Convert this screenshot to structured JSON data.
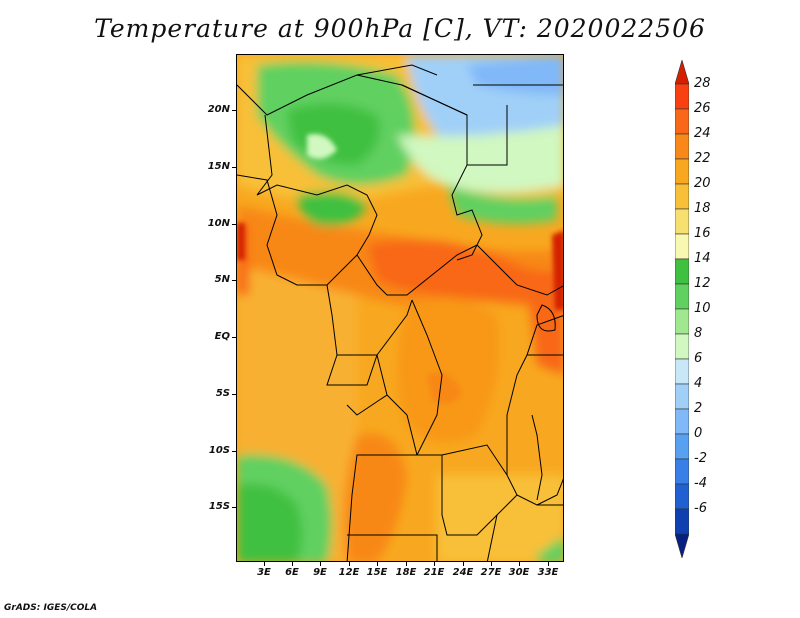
{
  "title": "Temperature at 900hPa [C], VT: 2020022506",
  "credit": "GrADS: IGES/COLA",
  "y_axis": {
    "labels": [
      "20N",
      "15N",
      "10N",
      "5N",
      "EQ",
      "5S",
      "10S",
      "15S"
    ]
  },
  "x_axis": {
    "labels": [
      "3E",
      "6E",
      "9E",
      "12E",
      "15E",
      "18E",
      "21E",
      "24E",
      "27E",
      "30E",
      "33E"
    ]
  },
  "colorbar": {
    "labels": [
      "28",
      "26",
      "24",
      "22",
      "20",
      "18",
      "16",
      "14",
      "12",
      "10",
      "8",
      "6",
      "4",
      "2",
      "0",
      "-2",
      "-4",
      "-6"
    ],
    "colors": [
      "#d42000",
      "#f84010",
      "#f86818",
      "#f88818",
      "#f8a820",
      "#f8c038",
      "#f8e070",
      "#f8f8b0",
      "#40c040",
      "#60d060",
      "#a0e890",
      "#d0f8c0",
      "#c8e8f8",
      "#a0d0f8",
      "#80b8f8",
      "#58a0f0",
      "#3880e8",
      "#2060d0",
      "#1040b0",
      "#082080"
    ]
  }
}
